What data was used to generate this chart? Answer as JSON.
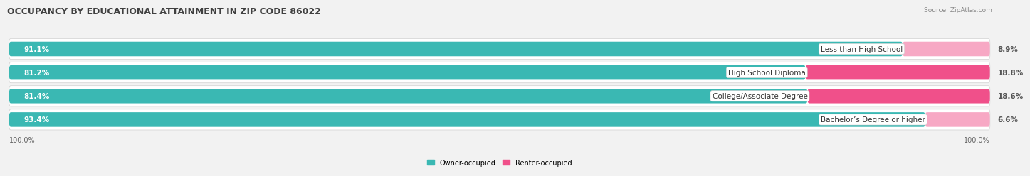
{
  "title": "OCCUPANCY BY EDUCATIONAL ATTAINMENT IN ZIP CODE 86022",
  "source": "Source: ZipAtlas.com",
  "categories": [
    "Less than High School",
    "High School Diploma",
    "College/Associate Degree",
    "Bachelor’s Degree or higher"
  ],
  "owner_pct": [
    91.1,
    81.2,
    81.4,
    93.4
  ],
  "renter_pct": [
    8.9,
    18.8,
    18.6,
    6.6
  ],
  "owner_color": "#3ab8b3",
  "renter_color_high": "#f0508a",
  "renter_color_low": "#f7a8c4",
  "owner_label": "Owner-occupied",
  "renter_label": "Renter-occupied",
  "bar_height": 0.62,
  "background_color": "#f2f2f2",
  "bar_bg_color": "#e8e8e8",
  "row_bg_color": "#ffffff",
  "title_fontsize": 9.0,
  "label_fontsize": 7.5,
  "value_fontsize": 7.5,
  "footer_fontsize": 7.0,
  "source_fontsize": 6.5,
  "axis_label_left": "100.0%",
  "axis_label_right": "100.0%",
  "xlim": [
    0,
    100
  ]
}
